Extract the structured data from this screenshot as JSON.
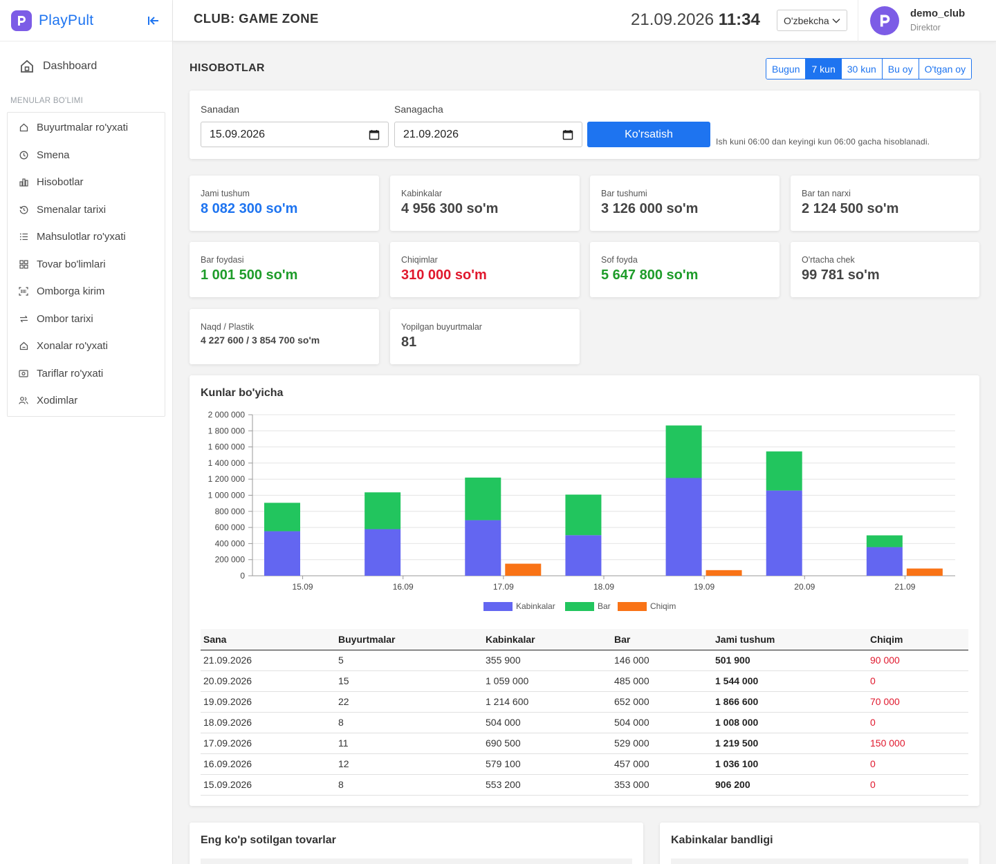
{
  "brand": {
    "name": "PlayPult",
    "accent": "#1e74f0",
    "logo_color": "#7c5ce6"
  },
  "sidebar": {
    "dashboard_label": "Dashboard",
    "section_title": "MENULAR BO'LIMI",
    "items": [
      {
        "label": "Buyurtmalar ro'yxati",
        "icon": "home-icon"
      },
      {
        "label": "Smena",
        "icon": "clock-icon"
      },
      {
        "label": "Hisobotlar",
        "icon": "bar-chart-icon"
      },
      {
        "label": "Smenalar tarixi",
        "icon": "history-icon"
      },
      {
        "label": "Mahsulotlar ro'yxati",
        "icon": "list-icon"
      },
      {
        "label": "Tovar bo'limlari",
        "icon": "grid-icon"
      },
      {
        "label": "Omborga kirim",
        "icon": "barcode-icon"
      },
      {
        "label": "Ombor tarixi",
        "icon": "swap-icon"
      },
      {
        "label": "Xonalar ro'yxati",
        "icon": "house-icon"
      },
      {
        "label": "Tariflar ro'yxati",
        "icon": "cash-icon"
      },
      {
        "label": "Xodimlar",
        "icon": "users-icon"
      }
    ]
  },
  "header": {
    "club_title": "CLUB: GAME ZONE",
    "date": "21.09.2026",
    "time": "11:34",
    "language": "O'zbekcha",
    "user_name": "demo_club",
    "user_role": "Direktor"
  },
  "page": {
    "title": "HISOBOTLAR",
    "ranges": [
      {
        "label": "Bugun",
        "active": false
      },
      {
        "label": "7 kun",
        "active": true
      },
      {
        "label": "30 kun",
        "active": false
      },
      {
        "label": "Bu oy",
        "active": false
      },
      {
        "label": "O'tgan oy",
        "active": false
      }
    ]
  },
  "filter": {
    "from_label": "Sanadan",
    "from_value": "15.09.2026",
    "to_label": "Sanagacha",
    "to_value": "21.09.2026",
    "button_label": "Ko'rsatish",
    "hint": "Ish kuni 06:00 dan keyingi kun 06:00 gacha hisoblanadi."
  },
  "stats": [
    {
      "label": "Jami tushum",
      "value": "8 082 300 so'm",
      "tone": "blue"
    },
    {
      "label": "Kabinkalar",
      "value": "4 956 300 so'm",
      "tone": "default"
    },
    {
      "label": "Bar tushumi",
      "value": "3 126 000 so'm",
      "tone": "default"
    },
    {
      "label": "Bar tan narxi",
      "value": "2 124 500 so'm",
      "tone": "default"
    },
    {
      "label": "Bar foydasi",
      "value": "1 001 500 so'm",
      "tone": "green"
    },
    {
      "label": "Chiqimlar",
      "value": "310 000 so'm",
      "tone": "red"
    },
    {
      "label": "Sof foyda",
      "value": "5 647 800 so'm",
      "tone": "green"
    },
    {
      "label": "O'rtacha chek",
      "value": "99 781 so'm",
      "tone": "default"
    },
    {
      "label": "Naqd / Plastik",
      "value": "4 227 600 / 3 854 700 so'm",
      "tone": "small"
    },
    {
      "label": "Yopilgan buyurtmalar",
      "value": "81",
      "tone": "default"
    }
  ],
  "chart_title": "Kunlar bo'yicha",
  "chart_data": {
    "type": "bar",
    "stacked_series": [
      "Kabinkalar",
      "Bar"
    ],
    "categories": [
      "15.09",
      "16.09",
      "17.09",
      "18.09",
      "19.09",
      "20.09",
      "21.09"
    ],
    "series": [
      {
        "name": "Kabinkalar",
        "color": "#6366f1",
        "values": [
          553200,
          579100,
          690500,
          504000,
          1214600,
          1059000,
          355900
        ]
      },
      {
        "name": "Bar",
        "color": "#22c55e",
        "values": [
          353000,
          457000,
          529000,
          504000,
          652000,
          485000,
          146000
        ]
      },
      {
        "name": "Chiqim",
        "color": "#f97316",
        "values": [
          0,
          0,
          150000,
          0,
          70000,
          0,
          90000
        ]
      }
    ],
    "ylim": [
      0,
      2000000
    ],
    "yticks": [
      "0",
      "200 000",
      "400 000",
      "600 000",
      "800 000",
      "1 000 000",
      "1 200 000",
      "1 400 000",
      "1 600 000",
      "1 800 000",
      "2 000 000"
    ],
    "grid": true,
    "legend": "bottom"
  },
  "table": {
    "headers": [
      "Sana",
      "Buyurtmalar",
      "Kabinkalar",
      "Bar",
      "Jami tushum",
      "Chiqim"
    ],
    "rows": [
      [
        "21.09.2026",
        "5",
        "355 900",
        "146 000",
        "501 900",
        "90 000"
      ],
      [
        "20.09.2026",
        "15",
        "1 059 000",
        "485 000",
        "1 544 000",
        "0"
      ],
      [
        "19.09.2026",
        "22",
        "1 214 600",
        "652 000",
        "1 866 600",
        "70 000"
      ],
      [
        "18.09.2026",
        "8",
        "504 000",
        "504 000",
        "1 008 000",
        "0"
      ],
      [
        "17.09.2026",
        "11",
        "690 500",
        "529 000",
        "1 219 500",
        "150 000"
      ],
      [
        "16.09.2026",
        "12",
        "579 100",
        "457 000",
        "1 036 100",
        "0"
      ],
      [
        "15.09.2026",
        "8",
        "553 200",
        "353 000",
        "906 200",
        "0"
      ]
    ]
  },
  "bottom": {
    "left_title": "Eng ko'p sotilgan tovarlar",
    "right_title": "Kabinkalar bandligi"
  }
}
